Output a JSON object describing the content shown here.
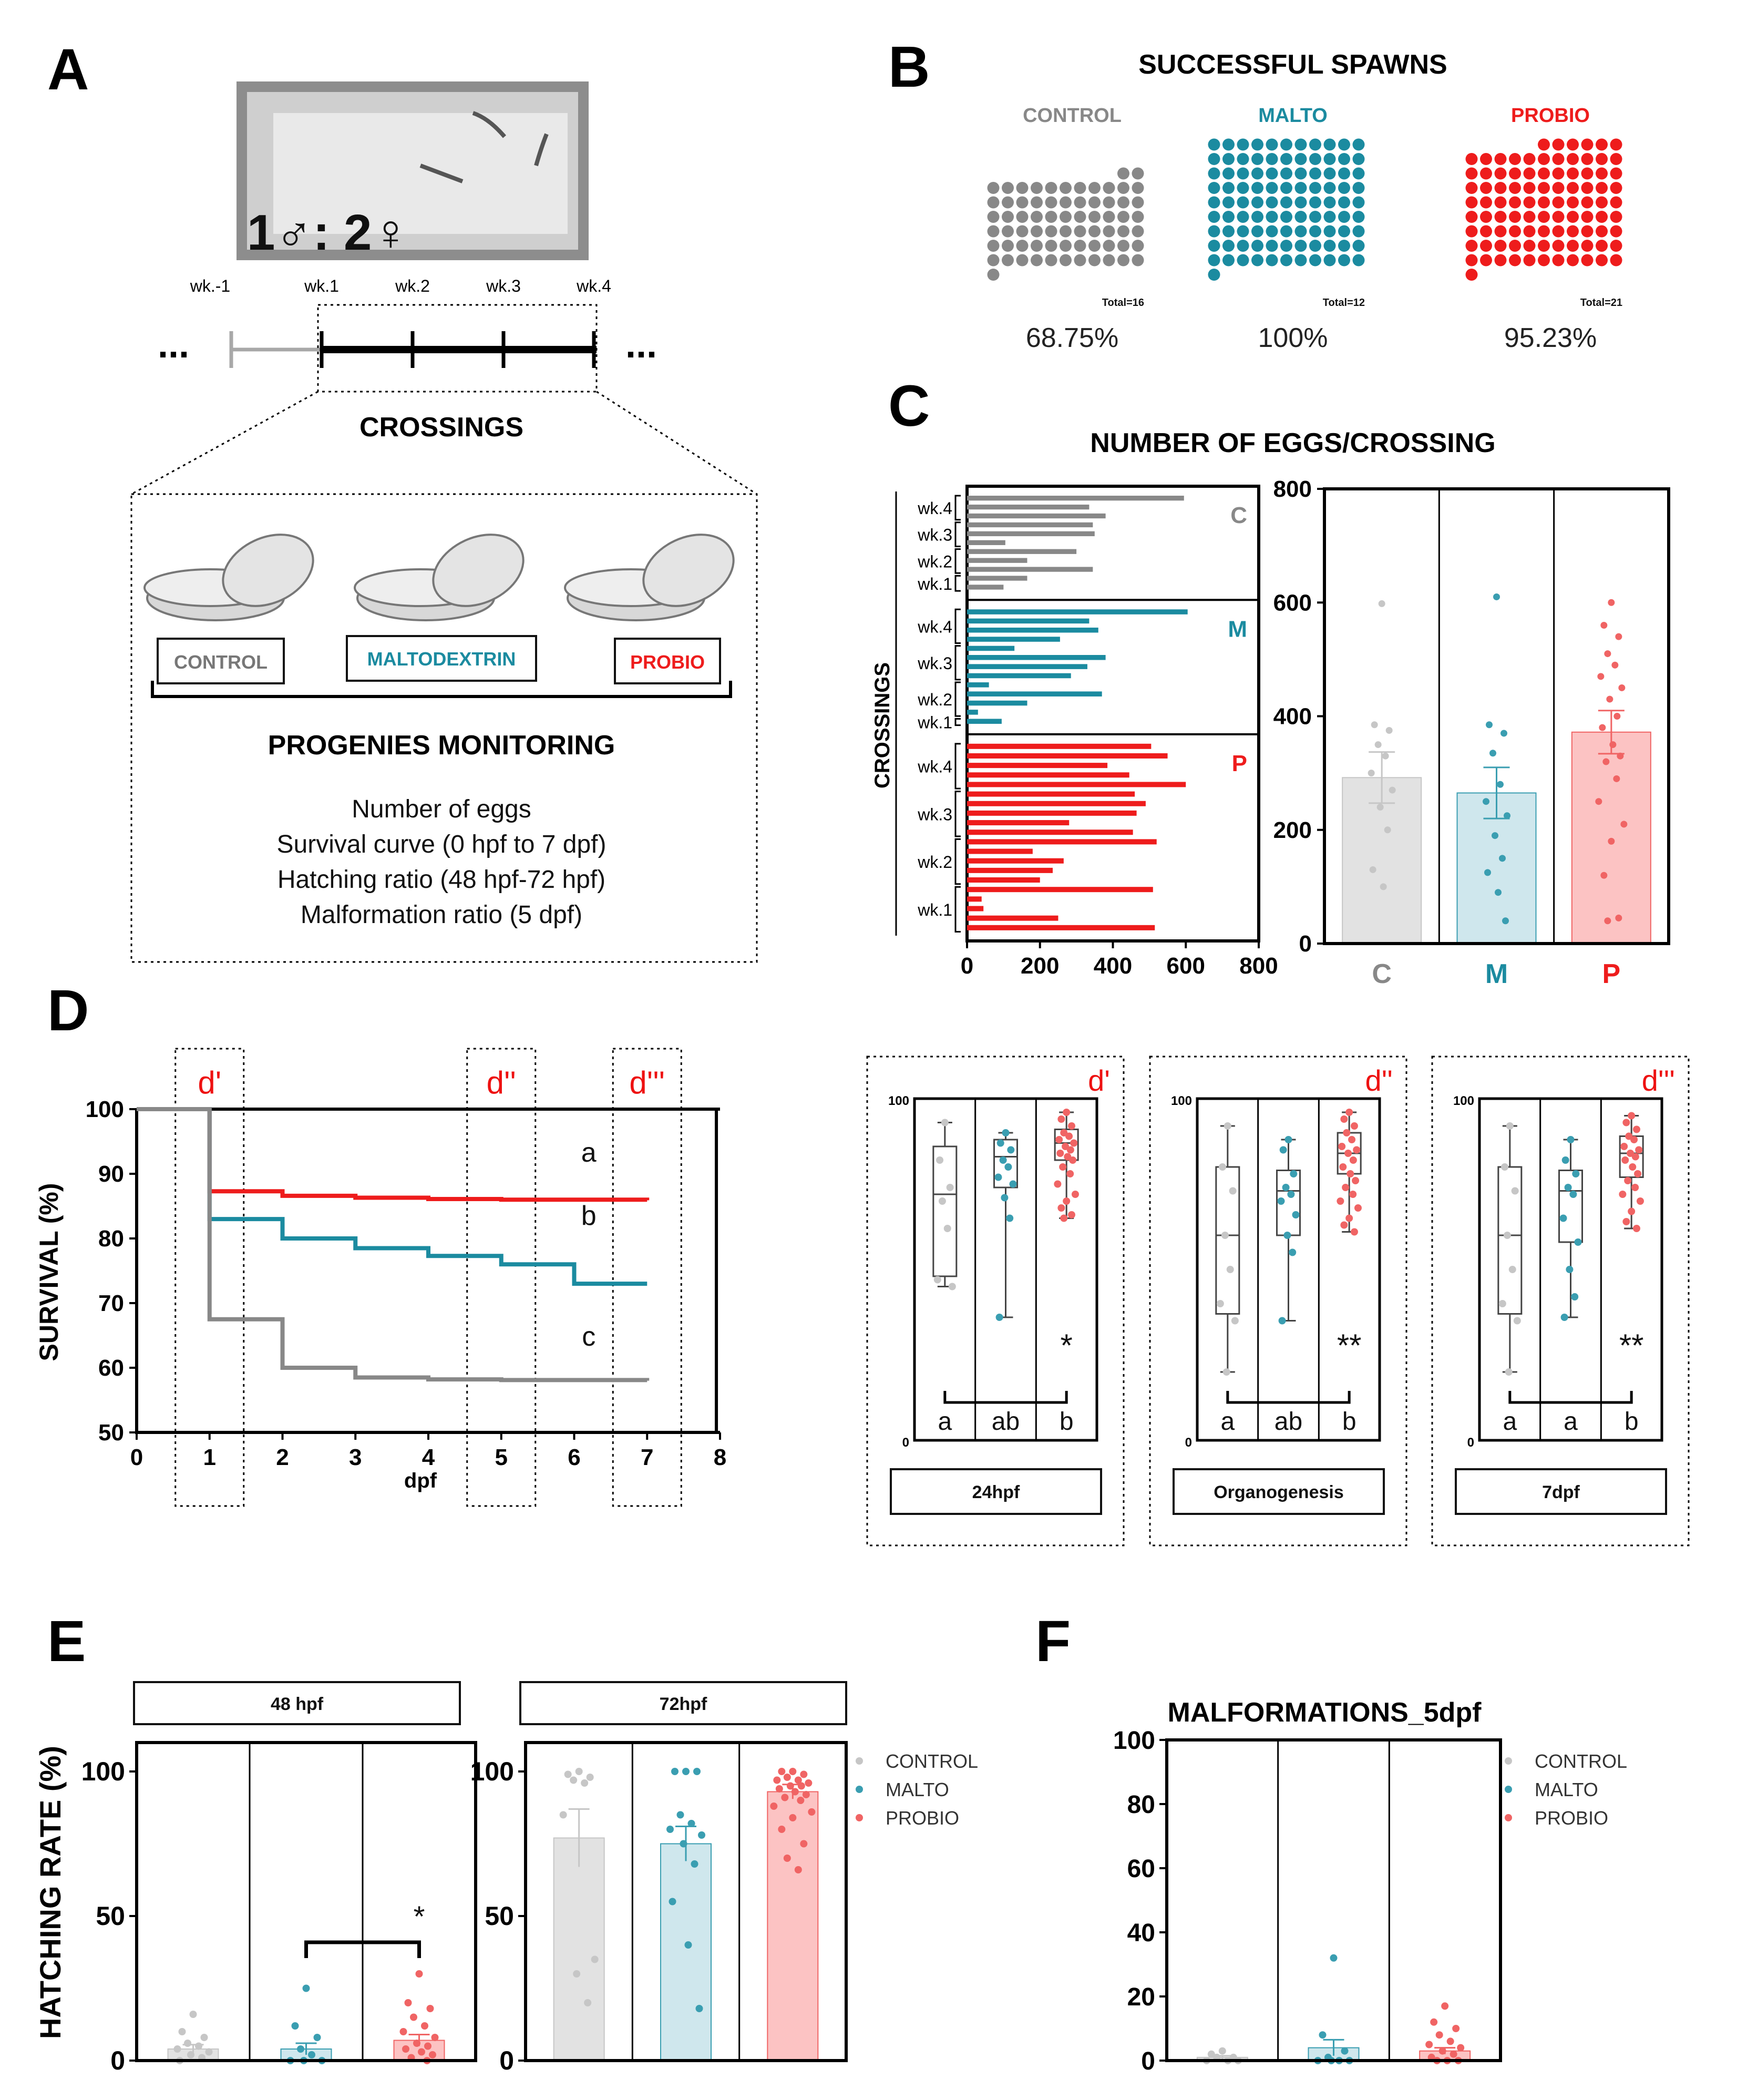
{
  "colors": {
    "control": "#888888",
    "malto": "#1b8ba0",
    "probio": "#ee1c1c",
    "control_light": "#e2e2e2",
    "malto_light": "#cfe7ed",
    "probio_light": "#fcc3c3",
    "control_dot": "#c6c6c6",
    "malto_dot": "#3a9eb1",
    "probio_dot": "#f06464"
  },
  "panelA": {
    "label": "A",
    "ratio_text": "1♂: 2♀",
    "timeline_weeks": [
      "wk.-1",
      "wk.1",
      "wk.2",
      "wk.3",
      "wk.4"
    ],
    "timeline_ellipsis": "...",
    "crossings_title": "CROSSINGS",
    "groups": [
      "CONTROL",
      "MALTODEXTRIN",
      "PROBIO"
    ],
    "monitoring_title": "PROGENIES MONITORING",
    "monitoring_items": [
      "Number of eggs",
      "Survival curve (0 hpf to 7 dpf)",
      "Hatching ratio (48 hpf-72 hpf)",
      "Malformation ratio (5 dpf)"
    ]
  },
  "panelB": {
    "label": "B",
    "title": "SUCCESSFUL SPAWNS",
    "groups": [
      {
        "name": "CONTROL",
        "color": "#888888",
        "total_label": "Total=16",
        "percent_label": "68.75%",
        "percent": 68.75
      },
      {
        "name": "MALTO",
        "color": "#1b8ba0",
        "total_label": "Total=12",
        "percent_label": "100%",
        "percent": 100
      },
      {
        "name": "PROBIO",
        "color": "#ee1c1c",
        "total_label": "Total=21",
        "percent_label": "95.23%",
        "percent": 95.23
      }
    ]
  },
  "panelC": {
    "label": "C",
    "title": "NUMBER OF EGGS/CROSSING",
    "chart_data": [
      {
        "type": "bar",
        "orientation": "horizontal",
        "ylabel": "CROSSINGS",
        "xlim": [
          0,
          800
        ],
        "x_ticks": [
          "0",
          "200",
          "400",
          "600",
          "800"
        ],
        "groups": [
          {
            "letter": "C",
            "color": "#888888",
            "weeks": [
              "wk.4",
              "wk.3",
              "wk.2",
              "wk.1"
            ],
            "values": [
              595,
              335,
              380,
              345,
              350,
              105,
              300,
              165,
              345,
              165,
              100
            ]
          },
          {
            "letter": "M",
            "color": "#1b8ba0",
            "weeks": [
              "wk.4",
              "wk.3",
              "wk.2",
              "wk.1"
            ],
            "values": [
              605,
              335,
              360,
              255,
              130,
              380,
              330,
              285,
              60,
              370,
              165,
              30,
              95
            ]
          },
          {
            "letter": "P",
            "color": "#ee1c1c",
            "weeks": [
              "wk.4",
              "wk.3",
              "wk.2",
              "wk.1"
            ],
            "values": [
              505,
              550,
              385,
              445,
              600,
              460,
              490,
              465,
              280,
              455,
              520,
              180,
              265,
              235,
              200,
              510,
              40,
              45,
              250,
              515
            ]
          }
        ]
      },
      {
        "type": "bar",
        "ylim": [
          0,
          800
        ],
        "y_ticks": [
          "0",
          "200",
          "400",
          "600",
          "800"
        ],
        "categories": [
          "C",
          "M",
          "P"
        ],
        "values": [
          292,
          265,
          372
        ],
        "sem": [
          45,
          45,
          38
        ],
        "points": [
          [
            598,
            385,
            375,
            350,
            330,
            300,
            270,
            240,
            200,
            130,
            100
          ],
          [
            610,
            385,
            370,
            335,
            280,
            250,
            225,
            190,
            150,
            125,
            90,
            40
          ],
          [
            600,
            560,
            540,
            510,
            490,
            470,
            450,
            430,
            400,
            380,
            350,
            330,
            320,
            290,
            250,
            210,
            180,
            120,
            45,
            40
          ]
        ]
      }
    ]
  },
  "panelD": {
    "label": "D",
    "ylabel": "SURVIVAL (%)",
    "xlabel": "dpf",
    "window_labels": [
      "d'",
      "d''",
      "d'''"
    ],
    "chart_data": {
      "type": "line",
      "step": true,
      "xlim": [
        0,
        8
      ],
      "ylim": [
        50,
        100
      ],
      "x_ticks": [
        "0",
        "1",
        "2",
        "3",
        "4",
        "5",
        "6",
        "7",
        "8"
      ],
      "y_ticks": [
        "50",
        "60",
        "70",
        "80",
        "90",
        "100"
      ],
      "series": [
        {
          "name": "PROBIO",
          "letter": "a",
          "color": "#ee1c1c",
          "x": [
            0,
            1,
            2,
            3,
            4,
            5,
            6,
            7
          ],
          "y": [
            100,
            87.3,
            86.6,
            86.3,
            86.1,
            86.0,
            86.0,
            85.9
          ]
        },
        {
          "name": "MALTO",
          "letter": "b",
          "color": "#1b8ba0",
          "x": [
            0,
            1,
            2,
            3,
            4,
            5,
            6,
            7
          ],
          "y": [
            100,
            83.0,
            80.0,
            78.5,
            77.3,
            76.0,
            73.0,
            73.0
          ]
        },
        {
          "name": "CONTROL",
          "letter": "c",
          "color": "#888888",
          "x": [
            0,
            1,
            2,
            3,
            4,
            5,
            6,
            7
          ],
          "y": [
            100,
            67.5,
            60.0,
            58.5,
            58.2,
            58.1,
            58.1,
            58.0
          ]
        }
      ]
    },
    "box_panels": [
      {
        "title": "24hpf",
        "tag": "d'",
        "sig": "*",
        "letters": [
          "a",
          "ab",
          "b"
        ],
        "ylim_labels": [
          "0",
          "100"
        ],
        "boxes": [
          {
            "min": 45,
            "q1": 48,
            "med": 72,
            "q3": 86,
            "max": 93,
            "points": [
              93,
              82,
              74,
              70,
              62,
              47,
              45
            ]
          },
          {
            "min": 36,
            "q1": 74,
            "med": 83,
            "q3": 88,
            "max": 90,
            "points": [
              90,
              87,
              85,
              82,
              80,
              77,
              75,
              71,
              65,
              36
            ]
          },
          {
            "min": 65,
            "q1": 82,
            "med": 87,
            "q3": 91,
            "max": 96,
            "points": [
              96,
              94,
              92,
              90,
              89,
              88,
              87,
              86,
              85,
              84,
              83,
              82,
              80,
              78,
              75,
              72,
              70,
              68,
              66,
              65
            ]
          }
        ]
      },
      {
        "title": "Organogenesis",
        "tag": "d''",
        "sig": "**",
        "letters": [
          "a",
          "ab",
          "b"
        ],
        "ylim_labels": [
          "0",
          "100"
        ],
        "boxes": [
          {
            "min": 20,
            "q1": 37,
            "med": 60,
            "q3": 80,
            "max": 92,
            "points": [
              92,
              80,
              73,
              60,
              50,
              40,
              35,
              20
            ]
          },
          {
            "min": 35,
            "q1": 60,
            "med": 73,
            "q3": 79,
            "max": 88,
            "points": [
              88,
              85,
              78,
              74,
              72,
              70,
              66,
              60,
              55,
              35
            ]
          },
          {
            "min": 61,
            "q1": 78,
            "med": 84,
            "q3": 90,
            "max": 96,
            "points": [
              96,
              94,
              92,
              90,
              88,
              86,
              85,
              84,
              82,
              80,
              78,
              76,
              74,
              72,
              70,
              68,
              65,
              63,
              61
            ]
          }
        ]
      },
      {
        "title": "7dpf",
        "tag": "d'''",
        "sig": "**",
        "letters": [
          "a",
          "a",
          "b"
        ],
        "ylim_labels": [
          "0",
          "100"
        ],
        "boxes": [
          {
            "min": 20,
            "q1": 37,
            "med": 60,
            "q3": 80,
            "max": 92,
            "points": [
              92,
              80,
              73,
              60,
              50,
              40,
              35,
              20
            ]
          },
          {
            "min": 36,
            "q1": 58,
            "med": 73,
            "q3": 79,
            "max": 88,
            "points": [
              88,
              82,
              78,
              74,
              72,
              65,
              58,
              50,
              42,
              36
            ]
          },
          {
            "min": 62,
            "q1": 77,
            "med": 84,
            "q3": 89,
            "max": 95,
            "points": [
              95,
              93,
              91,
              89,
              88,
              86,
              85,
              84,
              83,
              82,
              80,
              78,
              76,
              74,
              72,
              70,
              67,
              64,
              62
            ]
          }
        ]
      }
    ]
  },
  "panelE": {
    "label": "E",
    "ylabel": "HATCHING RATE (%)",
    "legend": [
      "CONTROL",
      "MALTO",
      "PROBIO"
    ],
    "chart_data": [
      {
        "type": "bar",
        "title": "48 hpf",
        "ylim": [
          0,
          110
        ],
        "y_ticks": [
          "0",
          "50",
          "100"
        ],
        "categories": [
          "CONTROL",
          "MALTO",
          "PROBIO"
        ],
        "values": [
          4,
          4,
          7
        ],
        "sem": [
          1.5,
          2,
          2
        ],
        "sig": "*",
        "points": [
          [
            16,
            10,
            8,
            6,
            5,
            4,
            3,
            2,
            1,
            0
          ],
          [
            25,
            12,
            8,
            4,
            2,
            0,
            0,
            0
          ],
          [
            30,
            20,
            18,
            15,
            12,
            10,
            8,
            6,
            5,
            4,
            3,
            2,
            1,
            0
          ]
        ]
      },
      {
        "type": "bar",
        "title": "72hpf",
        "ylim": [
          0,
          110
        ],
        "y_ticks": [
          "0",
          "50",
          "100"
        ],
        "categories": [
          "CONTROL",
          "MALTO",
          "PROBIO"
        ],
        "values": [
          77,
          75,
          93
        ],
        "sem": [
          10,
          6,
          2.5
        ],
        "points": [
          [
            100,
            99,
            98,
            97,
            96,
            85,
            35,
            30,
            20
          ],
          [
            100,
            100,
            100,
            85,
            82,
            80,
            78,
            75,
            68,
            55,
            40,
            18
          ],
          [
            100,
            100,
            99,
            98,
            97,
            97,
            96,
            95,
            95,
            94,
            93,
            92,
            91,
            90,
            88,
            86,
            84,
            80,
            75,
            70,
            66
          ]
        ]
      }
    ]
  },
  "panelF": {
    "label": "F",
    "title": "MALFORMATIONS_5dpf",
    "legend": [
      "CONTROL",
      "MALTO",
      "PROBIO"
    ],
    "chart_data": {
      "type": "bar",
      "ylim": [
        0,
        100
      ],
      "y_ticks": [
        "0",
        "20",
        "40",
        "60",
        "80",
        "100"
      ],
      "categories": [
        "CONTROL",
        "MALTO",
        "PROBIO"
      ],
      "values": [
        1,
        4,
        3
      ],
      "sem": [
        0.5,
        2.5,
        1
      ],
      "points": [
        [
          3,
          2,
          1,
          1,
          0,
          0,
          0
        ],
        [
          32,
          8,
          3,
          1,
          0,
          0,
          0,
          0
        ],
        [
          17,
          12,
          10,
          8,
          6,
          5,
          4,
          3,
          2,
          1,
          0,
          0,
          0
        ]
      ]
    }
  }
}
